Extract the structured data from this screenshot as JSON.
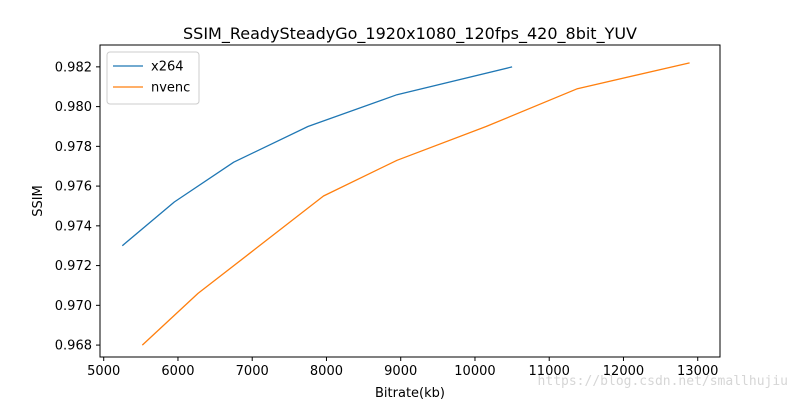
{
  "chart_data": {
    "type": "line",
    "title": "SSIM_ReadySteadyGo_1920x1080_120fps_420_8bit_YUV",
    "xlabel": "Bitrate(kb)",
    "ylabel": "SSIM",
    "xlim": [
      4950,
      13300
    ],
    "ylim": [
      0.9674,
      0.9831
    ],
    "xticks": [
      5000,
      6000,
      7000,
      8000,
      9000,
      10000,
      11000,
      12000,
      13000
    ],
    "yticks": [
      0.968,
      0.97,
      0.972,
      0.974,
      0.976,
      0.978,
      0.98,
      0.982
    ],
    "yticks_labels": [
      "0.968",
      "0.970",
      "0.972",
      "0.974",
      "0.976",
      "0.978",
      "0.980",
      "0.982"
    ],
    "grid": false,
    "legend_position": "top-left",
    "series": [
      {
        "name": "x264",
        "color": "#1f77b4",
        "x": [
          5250,
          5950,
          6750,
          7750,
          8950,
          10500
        ],
        "y": [
          0.973,
          0.9752,
          0.9772,
          0.979,
          0.9806,
          0.982
        ]
      },
      {
        "name": "nvenc",
        "color": "#ff7f0e",
        "x": [
          5520,
          6270,
          6960,
          7960,
          8950,
          10150,
          11380,
          12890
        ],
        "y": [
          0.968,
          0.9706,
          0.9726,
          0.9755,
          0.9773,
          0.979,
          0.9809,
          0.9822
        ]
      }
    ]
  },
  "watermark": "https://blog.csdn.net/smallhujiu"
}
